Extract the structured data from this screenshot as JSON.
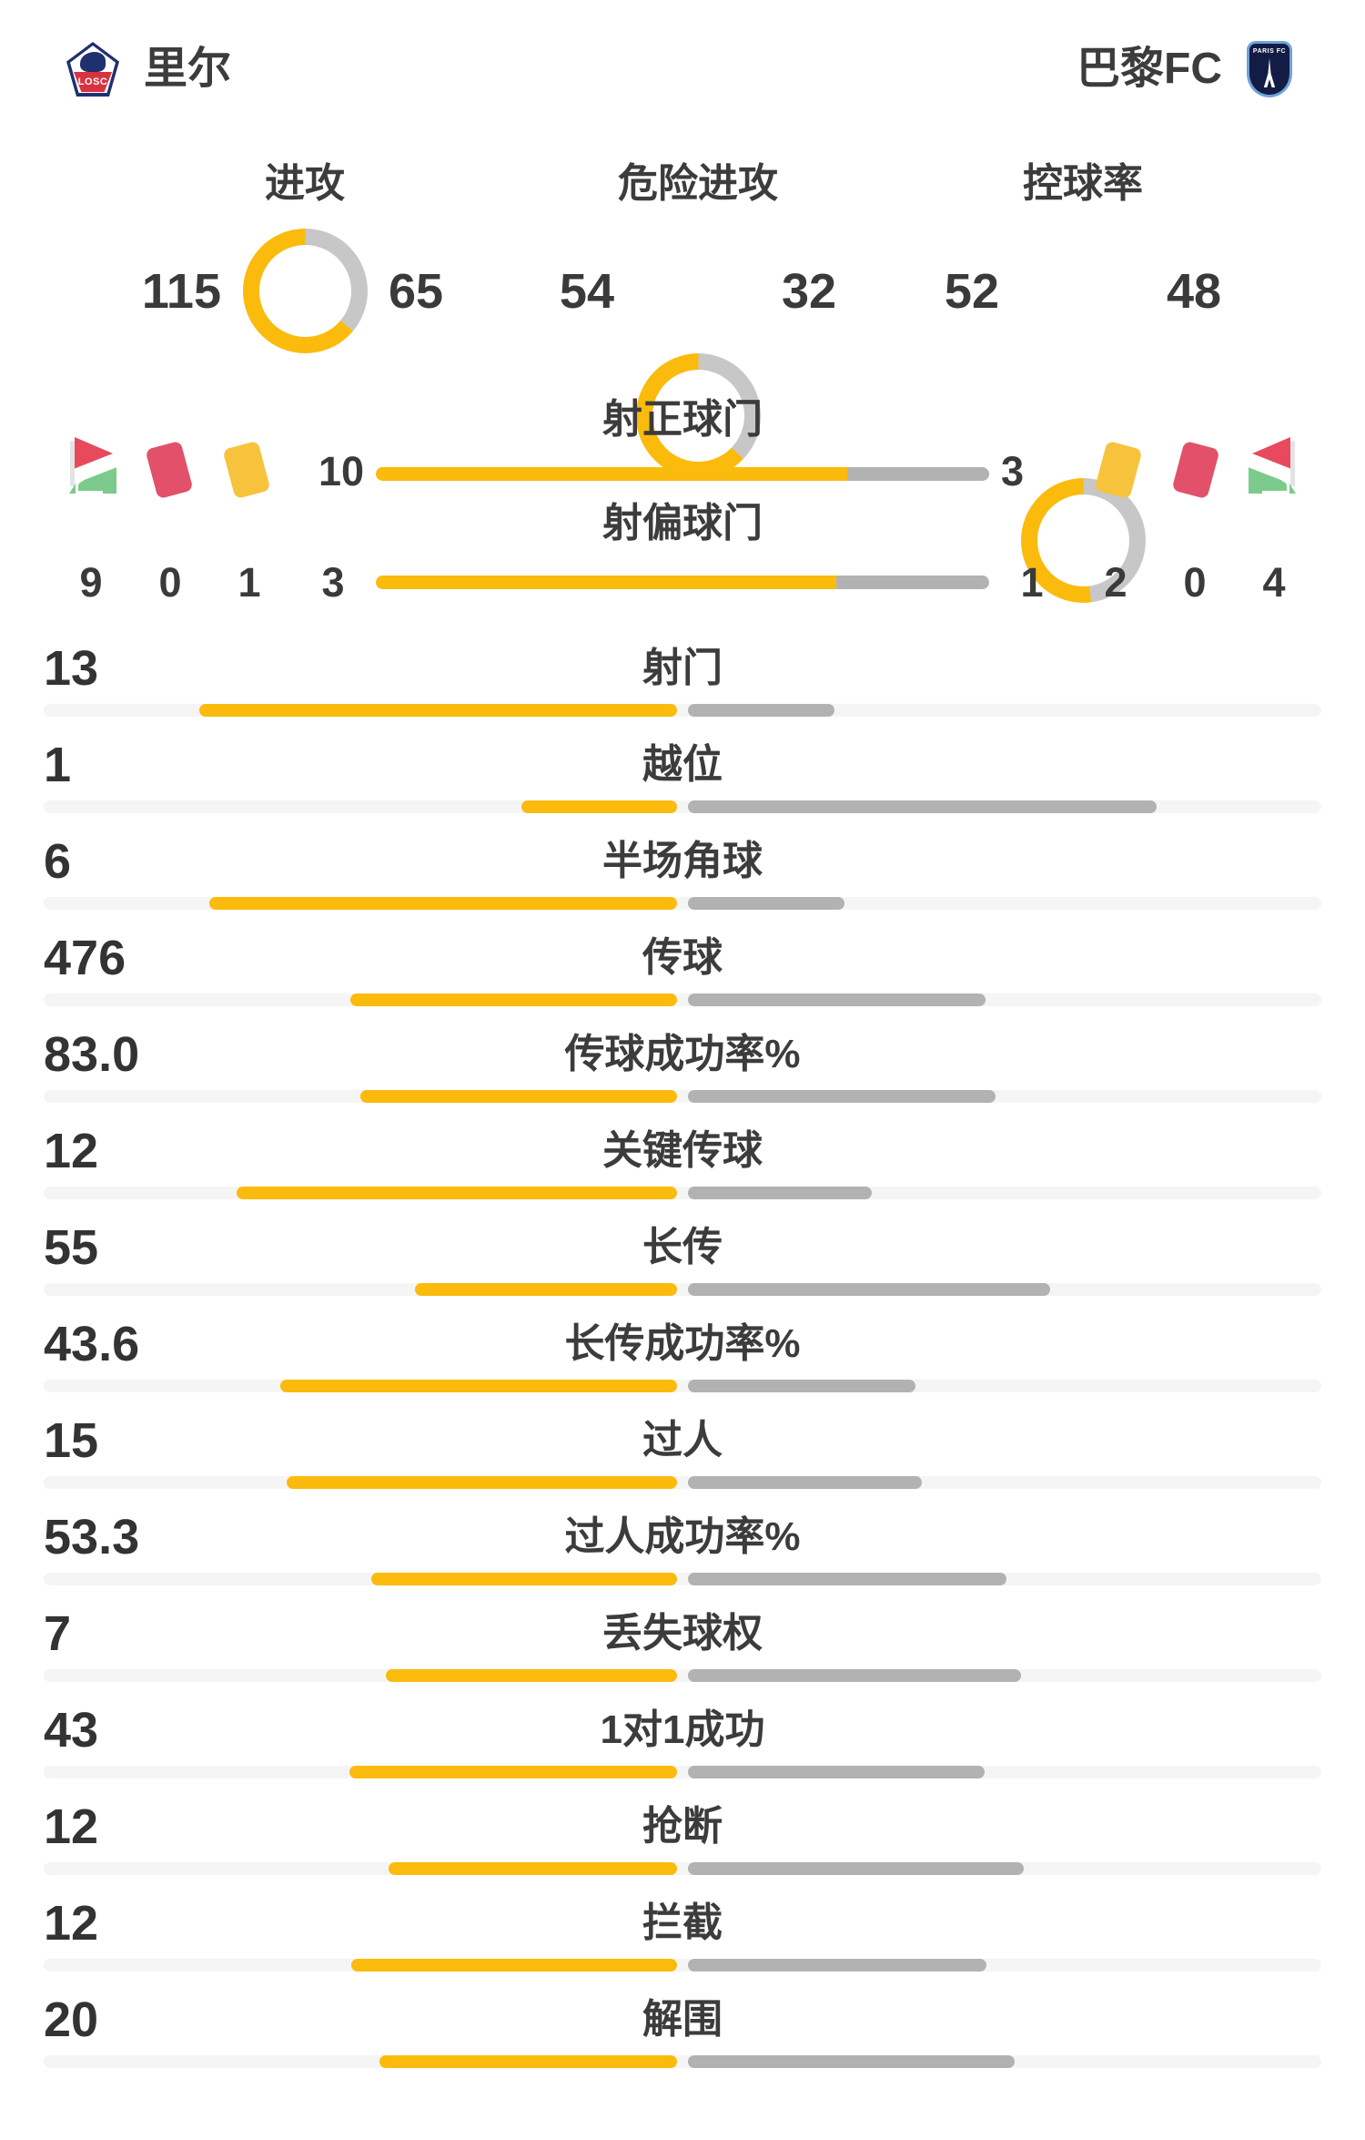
{
  "header": {
    "home": {
      "name": "里尔",
      "crest_text": "LOSC"
    },
    "away": {
      "name": "巴黎FC",
      "crest_text": "PARIS FC"
    }
  },
  "colors": {
    "home_accent": "#FBBB0D",
    "away_bar": "#B2B2B2",
    "donut_away": "#C7C7C7",
    "track": "#F5F5F5",
    "text": "#3A3A3A",
    "red_card": "#E2506A",
    "yellow_card": "#F8C33C",
    "flag_red": "#E8495C",
    "flag_green": "#7CCB8C",
    "lille_navy": "#20306E",
    "lille_red": "#D8323F",
    "paris_navy": "#131C45",
    "paris_blue": "#6FA3D8"
  },
  "chart_data": {
    "type": "bar",
    "teams": [
      "里尔",
      "巴黎FC"
    ],
    "legend_position": "top",
    "donuts": [
      {
        "label": "进攻",
        "home": "115",
        "away": "65"
      },
      {
        "label": "危险进攻",
        "home": "54",
        "away": "32"
      },
      {
        "label": "控球率",
        "home": "52",
        "away": "48"
      }
    ],
    "shot_bars": [
      {
        "label": "射正球门",
        "home": "10",
        "away": "3"
      },
      {
        "label": "射偏球门",
        "home": "3",
        "away": "1"
      }
    ],
    "discipline": {
      "home": {
        "corners": "9",
        "red_cards": "0",
        "yellow_cards": "1"
      },
      "away": {
        "corners": "4",
        "red_cards": "0",
        "yellow_cards": "2"
      }
    },
    "stats": [
      {
        "label": "射门",
        "home": "13",
        "away": "4"
      },
      {
        "label": "越位",
        "home": "1",
        "away": "3"
      },
      {
        "label": "半场角球",
        "home": "6",
        "away": "2"
      },
      {
        "label": "传球",
        "home": "476",
        "away": "434"
      },
      {
        "label": "传球成功率%",
        "home": "83.0",
        "away": "80.4"
      },
      {
        "label": "关键传球",
        "home": "12",
        "away": "5"
      },
      {
        "label": "长传",
        "home": "55",
        "away": "76"
      },
      {
        "label": "长传成功率%",
        "home": "43.6",
        "away": "25.0"
      },
      {
        "label": "过人",
        "home": "15",
        "away": "9"
      },
      {
        "label": "过人成功率%",
        "home": "53.3",
        "away": "55.6"
      },
      {
        "label": "丢失球权",
        "home": "7",
        "away": "8"
      },
      {
        "label": "1对1成功",
        "home": "43",
        "away": "39"
      },
      {
        "label": "抢断",
        "home": "12",
        "away": "14"
      },
      {
        "label": "拦截",
        "home": "12",
        "away": "11"
      },
      {
        "label": "解围",
        "home": "20",
        "away": "22"
      }
    ]
  }
}
